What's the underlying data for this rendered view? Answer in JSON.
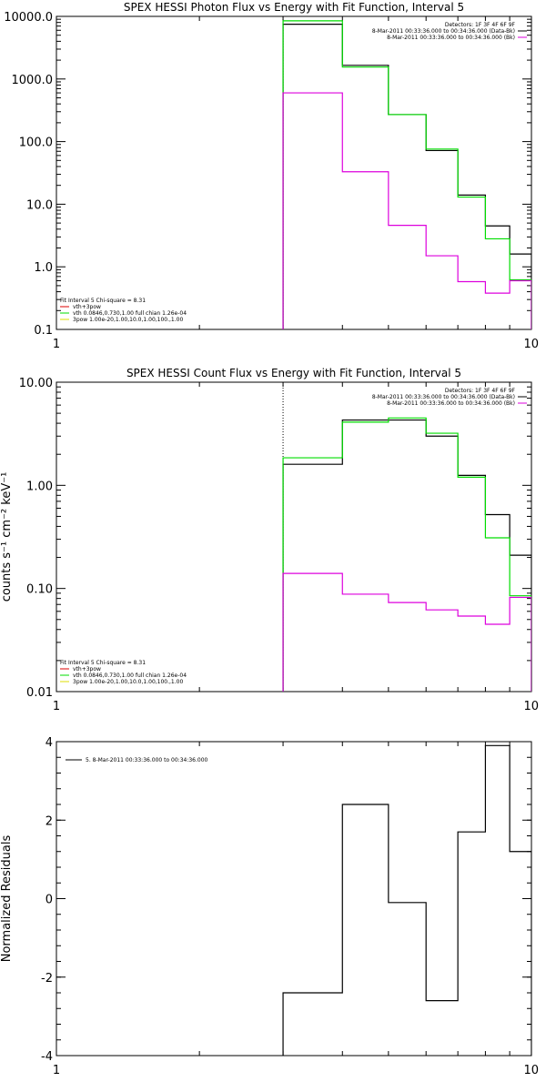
{
  "chart_data": [
    {
      "type": "line",
      "title": "SPEX HESSI Photon Flux vs Energy with Fit Function, Interval 5",
      "xlabel": "",
      "ylabel": "",
      "x_scale": "log",
      "y_scale": "log",
      "xlim": [
        1,
        10
      ],
      "ylim": [
        0.1,
        10000
      ],
      "x_ticks": [
        1,
        10
      ],
      "x_tick_labels": [
        "1",
        "10"
      ],
      "y_ticks": [
        0.1,
        1,
        10,
        100,
        1000,
        10000
      ],
      "y_tick_labels": [
        "0.1",
        "1.0",
        "10.0",
        "100.0",
        "1000.0",
        "10000.0"
      ],
      "marker_line_x": 3,
      "bin_edges": [
        3,
        4,
        5,
        6,
        7,
        8,
        9,
        10
      ],
      "series": [
        {
          "color": "#000000",
          "values": [
            7500,
            1650,
            270,
            72,
            14,
            4.5,
            1.6
          ]
        },
        {
          "color": "#00dd00",
          "values": [
            8500,
            1550,
            270,
            76,
            13,
            2.8,
            0.62
          ]
        },
        {
          "color": "#dd00dd",
          "values": [
            600,
            33,
            4.6,
            1.5,
            0.58,
            0.38,
            0.6
          ]
        }
      ],
      "legend_top_right": [
        {
          "text": "Detectors: 1F 3F 4F 6F 9F",
          "color": "#000000"
        },
        {
          "text": "8-Mar-2011 00:33:36.000 to 00:34:36.000 (Data-Bk)",
          "color": "#000000"
        },
        {
          "text": "8-Mar-2011 00:33:36.000 to 00:34:36.000 (Bk)",
          "color": "#dd00dd"
        }
      ],
      "legend_bottom_left": [
        {
          "text": "Fit Interval 5   Chi-square = 8.31",
          "color": "#000000"
        },
        {
          "text": "vth+3pow",
          "color": "#dd0000"
        },
        {
          "text": "vth 0.0846,0.730,1.00  full chian 1.26e-04",
          "color": "#00dd00"
        },
        {
          "text": "3pow 1.00e-20,1.00,10.0,1.00,100.,1.00",
          "color": "#dddd00"
        }
      ]
    },
    {
      "type": "line",
      "title": "SPEX HESSI Count Flux vs Energy with Fit Function, Interval 5",
      "xlabel": "",
      "ylabel": "counts s⁻¹ cm⁻² keV⁻¹",
      "x_scale": "log",
      "y_scale": "log",
      "xlim": [
        1,
        10
      ],
      "ylim": [
        0.01,
        10
      ],
      "x_ticks": [
        1,
        10
      ],
      "x_tick_labels": [
        "1",
        "10"
      ],
      "y_ticks": [
        0.01,
        0.1,
        1,
        10
      ],
      "y_tick_labels": [
        "0.01",
        "0.10",
        "1.00",
        "10.00"
      ],
      "marker_line_x": 3,
      "bin_edges": [
        3,
        4,
        5,
        6,
        7,
        8,
        9,
        10
      ],
      "series": [
        {
          "color": "#000000",
          "values": [
            1.6,
            4.3,
            4.3,
            3.0,
            1.25,
            0.52,
            0.21
          ]
        },
        {
          "color": "#00dd00",
          "values": [
            1.85,
            4.1,
            4.5,
            3.2,
            1.2,
            0.31,
            0.085
          ]
        },
        {
          "color": "#dd00dd",
          "values": [
            0.14,
            0.088,
            0.073,
            0.062,
            0.054,
            0.045,
            0.082
          ]
        }
      ],
      "legend_top_right": [
        {
          "text": "Detectors: 1F 3F 4F 6F 9F",
          "color": "#000000"
        },
        {
          "text": "8-Mar-2011 00:33:36.000 to 00:34:36.000 (Data-Bk)",
          "color": "#000000"
        },
        {
          "text": "8-Mar-2011 00:33:36.000 to 00:34:36.000 (Bk)",
          "color": "#dd00dd"
        }
      ],
      "legend_bottom_left": [
        {
          "text": "Fit Interval 5   Chi-square = 8.31",
          "color": "#000000"
        },
        {
          "text": "vth+3pow",
          "color": "#dd0000"
        },
        {
          "text": "vth 0.0846,0.730,1.00  full chian 1.26e-04",
          "color": "#00dd00"
        },
        {
          "text": "3pow 1.00e-20,1.00,10.0,1.00,100.,1.00",
          "color": "#dddd00"
        }
      ]
    },
    {
      "type": "line",
      "title": "",
      "xlabel": "",
      "ylabel": "Normalized Residuals",
      "x_scale": "log",
      "y_scale": "linear",
      "xlim": [
        1,
        10
      ],
      "ylim": [
        -4,
        4
      ],
      "x_ticks": [
        1,
        10
      ],
      "x_tick_labels": [
        "1",
        "10"
      ],
      "y_ticks": [
        -4,
        -2,
        0,
        2,
        4
      ],
      "y_tick_labels": [
        "-4",
        "-2",
        "0",
        "2",
        "4"
      ],
      "bin_edges": [
        3,
        4,
        5,
        6,
        7,
        8,
        9,
        10
      ],
      "series": [
        {
          "color": "#000000",
          "values": [
            -2.4,
            2.4,
            -0.1,
            -2.6,
            1.7,
            3.9,
            1.2
          ]
        }
      ],
      "legend_top_left": [
        {
          "text": "5.  8-Mar-2011 00:33:36.000 to 00:34:36.000",
          "color": "#000000"
        }
      ]
    }
  ]
}
